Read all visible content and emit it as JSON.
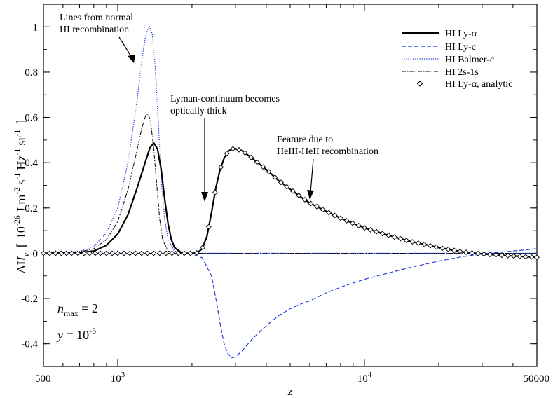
{
  "chart_data": {
    "type": "line",
    "xscale": "log",
    "xlim": [
      500,
      50000
    ],
    "ylim": [
      -0.5,
      1.1
    ],
    "grid": false,
    "legend_position": "top-right",
    "xlabel": "z",
    "ylabel": {
      "delta": "ΔI",
      "nu": "ν",
      "bracket_open": "[",
      "bracket_close": "]",
      "base": "10",
      "exp": "-26",
      "u1": "J m",
      "e1": "-2",
      "u2": "s",
      "e2": "-1",
      "u3": "Hz",
      "e3": "-1",
      "u4": "sr",
      "e4": "-1"
    },
    "x_ticks": [
      {
        "value": 500,
        "label": "500",
        "sup": ""
      },
      {
        "value": 1000,
        "label": "10",
        "sup": "3"
      },
      {
        "value": 10000,
        "label": "10",
        "sup": "4"
      },
      {
        "value": 50000,
        "label": "50000",
        "sup": ""
      }
    ],
    "y_ticks": [
      {
        "value": -0.4,
        "label": "-0.4"
      },
      {
        "value": -0.2,
        "label": "-0.2"
      },
      {
        "value": 0,
        "label": "0"
      },
      {
        "value": 0.2,
        "label": "0.2"
      },
      {
        "value": 0.4,
        "label": "0.4"
      },
      {
        "value": 0.6,
        "label": "0.6"
      },
      {
        "value": 0.8,
        "label": "0.8"
      },
      {
        "value": 1.0,
        "label": "1"
      }
    ],
    "series": [
      {
        "name": "HI Ly-α",
        "color": "#000000",
        "style": "solid",
        "points": [
          [
            500,
            0
          ],
          [
            700,
            0.003
          ],
          [
            800,
            0.01
          ],
          [
            900,
            0.035
          ],
          [
            1000,
            0.085
          ],
          [
            1100,
            0.17
          ],
          [
            1200,
            0.29
          ],
          [
            1300,
            0.41
          ],
          [
            1350,
            0.465
          ],
          [
            1400,
            0.487
          ],
          [
            1450,
            0.46
          ],
          [
            1500,
            0.37
          ],
          [
            1550,
            0.24
          ],
          [
            1600,
            0.13
          ],
          [
            1650,
            0.06
          ],
          [
            1700,
            0.025
          ],
          [
            1800,
            0.005
          ],
          [
            1900,
            0
          ],
          [
            2000,
            0
          ],
          [
            2100,
            0.002
          ],
          [
            2200,
            0.02
          ],
          [
            2300,
            0.075
          ],
          [
            2400,
            0.18
          ],
          [
            2500,
            0.29
          ],
          [
            2600,
            0.37
          ],
          [
            2700,
            0.42
          ],
          [
            2800,
            0.45
          ],
          [
            2900,
            0.461
          ],
          [
            3000,
            0.462
          ],
          [
            3200,
            0.452
          ],
          [
            3500,
            0.42
          ],
          [
            4000,
            0.37
          ],
          [
            4500,
            0.32
          ],
          [
            5000,
            0.283
          ],
          [
            5500,
            0.25
          ],
          [
            6000,
            0.222
          ],
          [
            7000,
            0.185
          ],
          [
            8000,
            0.155
          ],
          [
            9000,
            0.132
          ],
          [
            10000,
            0.112
          ],
          [
            12000,
            0.085
          ],
          [
            15000,
            0.055
          ],
          [
            20000,
            0.025
          ],
          [
            25000,
            0.006
          ],
          [
            30000,
            -0.003
          ],
          [
            40000,
            -0.012
          ],
          [
            50000,
            -0.018
          ]
        ]
      },
      {
        "name": "HI Ly-c",
        "color": "#1f3ddb",
        "style": "dashed",
        "points": [
          [
            500,
            0
          ],
          [
            1800,
            0
          ],
          [
            2000,
            -0.003
          ],
          [
            2200,
            -0.02
          ],
          [
            2400,
            -0.1
          ],
          [
            2500,
            -0.2
          ],
          [
            2600,
            -0.31
          ],
          [
            2700,
            -0.4
          ],
          [
            2800,
            -0.445
          ],
          [
            2900,
            -0.462
          ],
          [
            3000,
            -0.458
          ],
          [
            3200,
            -0.43
          ],
          [
            3500,
            -0.38
          ],
          [
            4000,
            -0.32
          ],
          [
            4500,
            -0.275
          ],
          [
            5000,
            -0.245
          ],
          [
            5500,
            -0.225
          ],
          [
            6000,
            -0.21
          ],
          [
            7000,
            -0.175
          ],
          [
            8000,
            -0.15
          ],
          [
            10000,
            -0.115
          ],
          [
            15000,
            -0.065
          ],
          [
            20000,
            -0.035
          ],
          [
            25000,
            -0.015
          ],
          [
            30000,
            -0.003
          ],
          [
            40000,
            0.01
          ],
          [
            50000,
            0.02
          ]
        ]
      },
      {
        "name": "HI Balmer-c",
        "color": "#1f3ddb",
        "style": "dotted",
        "points": [
          [
            500,
            0
          ],
          [
            700,
            0.008
          ],
          [
            800,
            0.03
          ],
          [
            900,
            0.09
          ],
          [
            1000,
            0.2
          ],
          [
            1100,
            0.4
          ],
          [
            1200,
            0.68
          ],
          [
            1250,
            0.85
          ],
          [
            1300,
            0.965
          ],
          [
            1340,
            1.005
          ],
          [
            1380,
            0.97
          ],
          [
            1420,
            0.82
          ],
          [
            1460,
            0.58
          ],
          [
            1500,
            0.33
          ],
          [
            1550,
            0.15
          ],
          [
            1600,
            0.06
          ],
          [
            1700,
            0.01
          ],
          [
            1800,
            0.002
          ],
          [
            2000,
            0
          ],
          [
            50000,
            0
          ]
        ]
      },
      {
        "name": "HI 2s-1s",
        "color": "#000000",
        "style": "dashdot",
        "points": [
          [
            500,
            0
          ],
          [
            700,
            0.006
          ],
          [
            800,
            0.02
          ],
          [
            900,
            0.06
          ],
          [
            1000,
            0.14
          ],
          [
            1100,
            0.28
          ],
          [
            1200,
            0.46
          ],
          [
            1250,
            0.55
          ],
          [
            1300,
            0.61
          ],
          [
            1330,
            0.615
          ],
          [
            1360,
            0.58
          ],
          [
            1400,
            0.46
          ],
          [
            1440,
            0.3
          ],
          [
            1480,
            0.15
          ],
          [
            1520,
            0.06
          ],
          [
            1600,
            0.01
          ],
          [
            1700,
            0
          ],
          [
            50000,
            0
          ]
        ]
      }
    ],
    "analytic": {
      "name": "HI Ly-α, analytic",
      "marker": "diamond",
      "follows": "HI Ly-α",
      "x": [
        500,
        530,
        560,
        590,
        620,
        650,
        690,
        730,
        770,
        810,
        850,
        900,
        950,
        1000,
        1060,
        1120,
        1180,
        1250,
        1320,
        1400,
        1480,
        1570,
        1660,
        1760,
        1860,
        1970,
        2090,
        2210,
        2340,
        2480,
        2620,
        2770,
        2930,
        3100,
        3280,
        3470,
        3670,
        3880,
        4100,
        4340,
        4590,
        4850,
        5130,
        5420,
        5730,
        6060,
        6410,
        6780,
        7170,
        7580,
        8010,
        8470,
        8960,
        9470,
        10010,
        10590,
        11190,
        11830,
        12510,
        13230,
        13990,
        14790,
        15640,
        16540,
        17490,
        18490,
        19550,
        20670,
        21850,
        23100,
        24420,
        25820,
        27300,
        28860,
        30510,
        32260,
        34110,
        36060,
        38120,
        40310,
        42620,
        45060,
        47640,
        50000
      ]
    },
    "annotations": [
      {
        "id": "normal",
        "lines": [
          "Lines from normal",
          "HI recombination"
        ]
      },
      {
        "id": "thick",
        "lines": [
          "Lyman-continuum becomes",
          "optically thick"
        ]
      },
      {
        "id": "heiii",
        "lines": [
          "Feature due to",
          "HeIII-HeII recombination"
        ]
      }
    ],
    "params": {
      "n_sym": "n",
      "n_sub": "max",
      "n_rest": " = 2",
      "y_sym": "y",
      "y_rest": " = 10",
      "y_exp": "-5"
    }
  }
}
